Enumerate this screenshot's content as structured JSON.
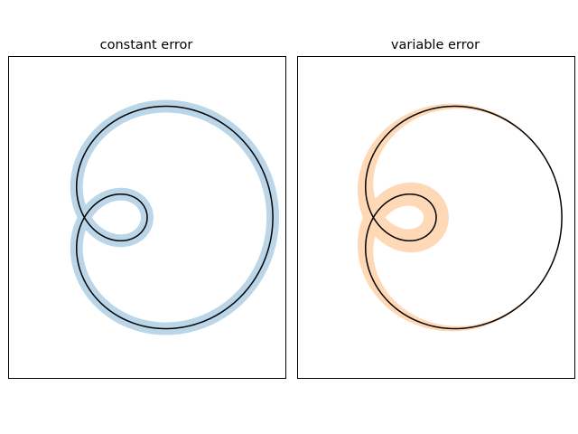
{
  "chart_data": [
    {
      "type": "line",
      "title": "constant error",
      "xlabel": "",
      "ylabel": "",
      "xticks": [],
      "yticks": [],
      "grid": false,
      "curve": {
        "parametric": "limacon",
        "r": "0.5 + cos(t)",
        "x": "r * cos(t)",
        "y": "r * sin(t)",
        "t_range": [
          0,
          6.283185
        ],
        "color": "#000000"
      },
      "error_band": {
        "kind": "constant",
        "width": 0.05,
        "color": "#1f77b4",
        "alpha": 0.3
      },
      "xlim": [
        -0.6,
        1.6
      ],
      "ylim": [
        -1.27,
        1.27
      ]
    },
    {
      "type": "line",
      "title": "variable error",
      "xlabel": "",
      "ylabel": "",
      "xticks": [],
      "yticks": [],
      "grid": false,
      "curve": {
        "parametric": "limacon",
        "r": "0.5 + cos(t)",
        "x": "r * cos(t)",
        "y": "r * sin(t)",
        "t_range": [
          0,
          6.283185
        ],
        "color": "#000000"
      },
      "error_band": {
        "kind": "variable",
        "width_min": 0.0,
        "width_max": 0.1,
        "color": "#ff7f0e",
        "alpha": 0.3
      },
      "xlim": [
        -0.6,
        1.6
      ],
      "ylim": [
        -1.27,
        1.27
      ]
    }
  ]
}
